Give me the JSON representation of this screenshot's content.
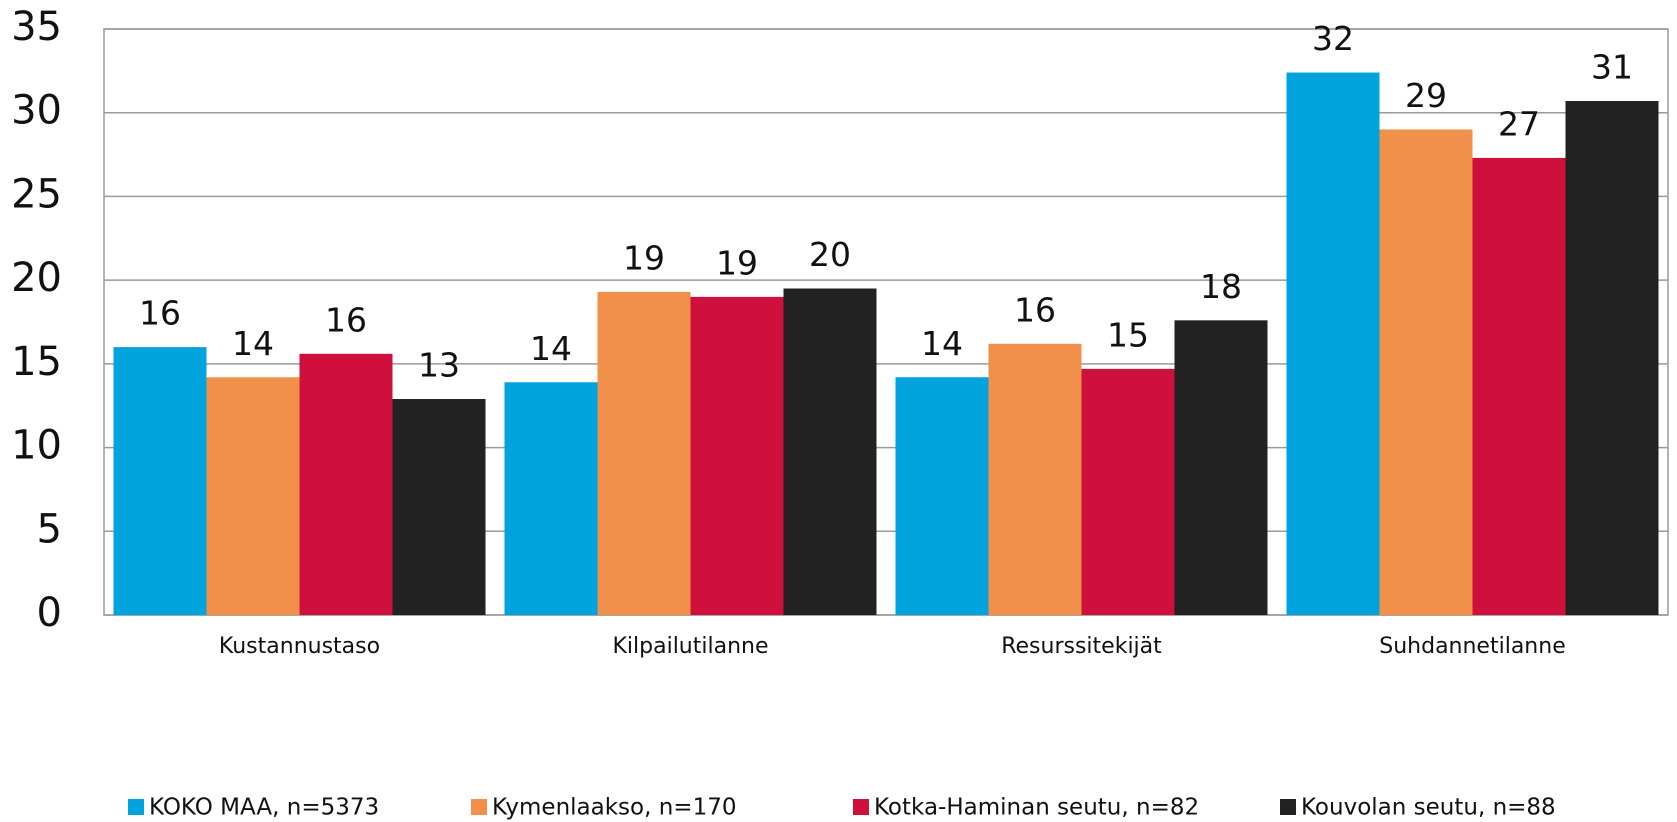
{
  "chart_data": {
    "type": "bar",
    "categories": [
      "Kustannustaso",
      "Kilpailutilanne",
      "Resurssitekijät",
      "Suhdannetilanne"
    ],
    "series": [
      {
        "name": "KOKO MAA, n=5373",
        "color": "#00a3dc",
        "values": [
          16.0,
          13.9,
          14.2,
          32.4
        ],
        "value_labels": [
          "16",
          "14",
          "14",
          "32"
        ]
      },
      {
        "name": "Kymenlaakso, n=170",
        "color": "#f0904a",
        "values": [
          14.2,
          19.3,
          16.2,
          29.0
        ],
        "value_labels": [
          "14",
          "19",
          "16",
          "29"
        ]
      },
      {
        "name": "Kotka-Haminan seutu, n=82",
        "color": "#cf0f3c",
        "values": [
          15.6,
          19.0,
          14.7,
          27.3
        ],
        "value_labels": [
          "16",
          "19",
          "15",
          "27"
        ]
      },
      {
        "name": "Kouvolan seutu, n=88",
        "color": "#222222",
        "values": [
          12.9,
          19.5,
          17.6,
          30.7
        ],
        "value_labels": [
          "13",
          "20",
          "18",
          "31"
        ]
      }
    ],
    "ylim": [
      0,
      35
    ],
    "yticks": [
      0,
      5,
      10,
      15,
      20,
      25,
      30,
      35
    ],
    "grid": true,
    "legend": "bottom"
  }
}
